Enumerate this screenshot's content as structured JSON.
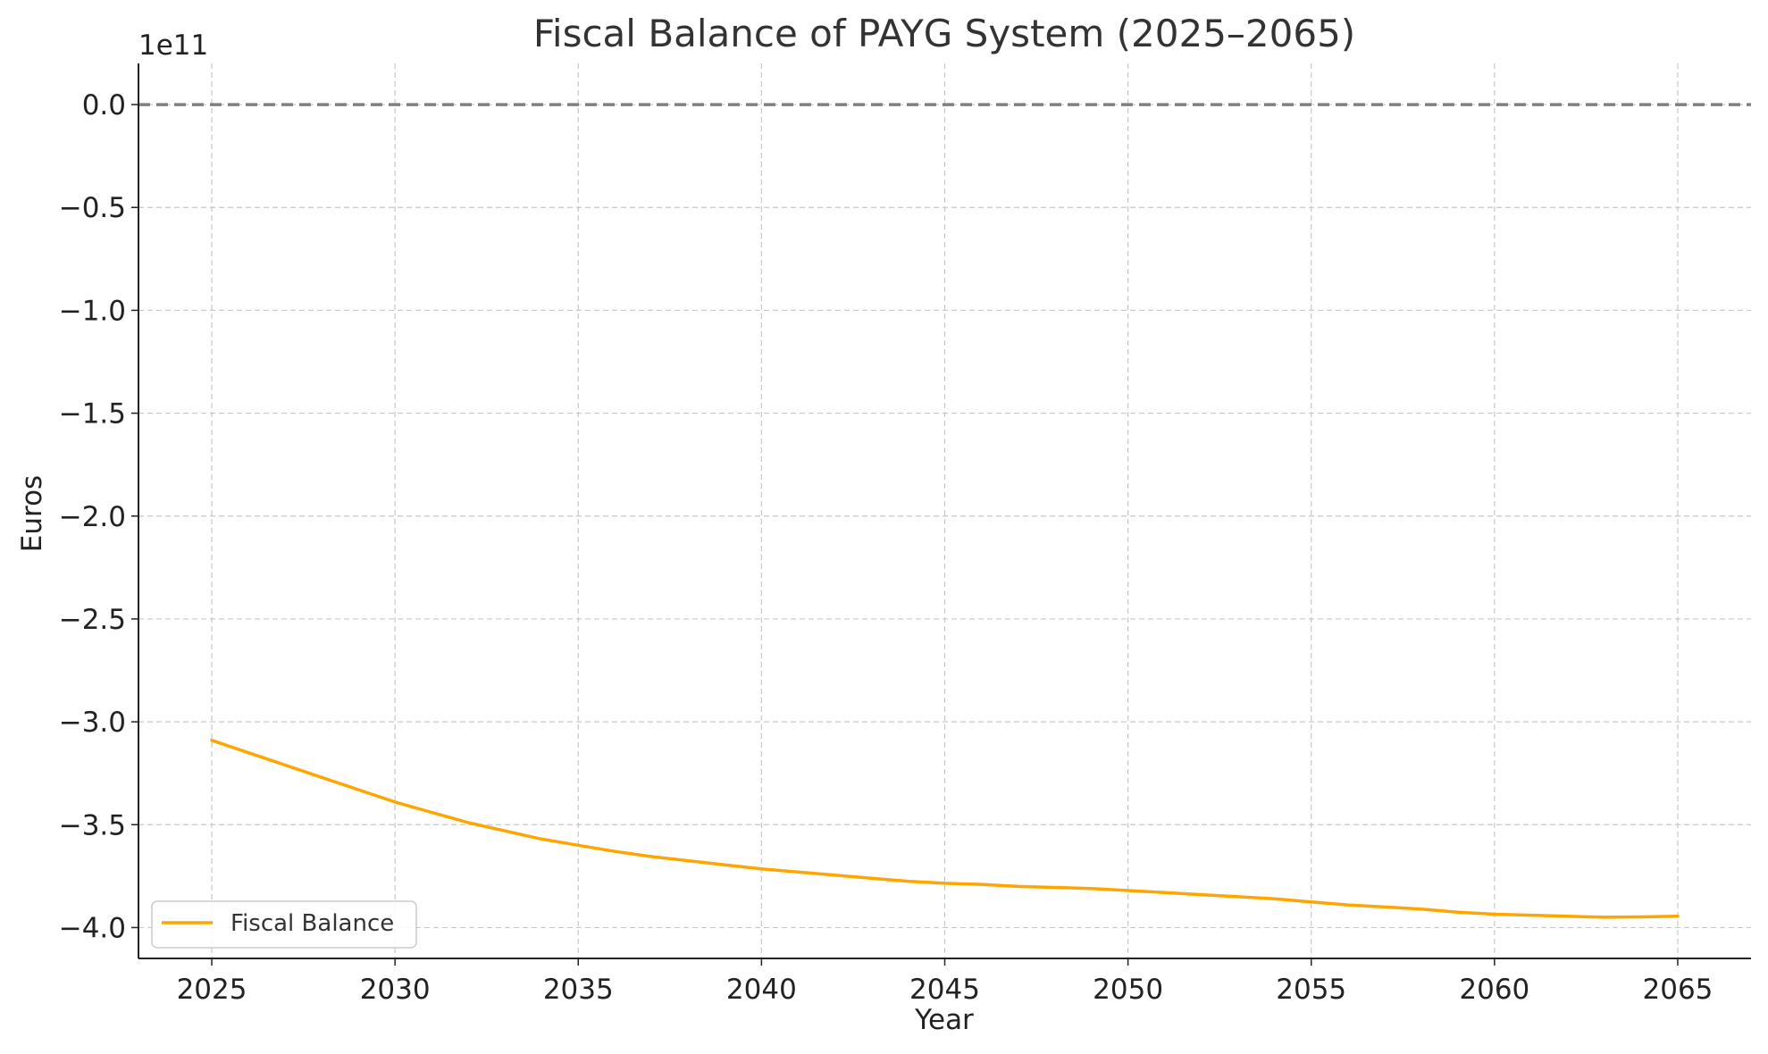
{
  "chart_data": {
    "type": "line",
    "title": "Fiscal Balance of PAYG System (2025–2065)",
    "xlabel": "Year",
    "ylabel": "Euros",
    "y_offset_label": "1e11",
    "xlim": [
      2023,
      2067
    ],
    "ylim": [
      -4.15,
      0.2
    ],
    "x_ticks": [
      2025,
      2030,
      2035,
      2040,
      2045,
      2050,
      2055,
      2060,
      2065
    ],
    "x_tick_labels": [
      "2025",
      "2030",
      "2035",
      "2040",
      "2045",
      "2050",
      "2055",
      "2060",
      "2065"
    ],
    "y_ticks": [
      0.0,
      -0.5,
      -1.0,
      -1.5,
      -2.0,
      -2.5,
      -3.0,
      -3.5,
      -4.0
    ],
    "y_tick_labels": [
      "0.0",
      "−0.5",
      "−1.0",
      "−1.5",
      "−2.0",
      "−2.5",
      "−3.0",
      "−3.5",
      "−4.0"
    ],
    "grid": true,
    "legend_position": "lower-left",
    "reference_line": {
      "y": 0.0,
      "style": "dashed",
      "color": "#808080"
    },
    "series": [
      {
        "name": "Fiscal Balance",
        "color": "#FFA500",
        "x": [
          2025,
          2026,
          2027,
          2028,
          2029,
          2030,
          2031,
          2032,
          2033,
          2034,
          2035,
          2036,
          2037,
          2038,
          2039,
          2040,
          2041,
          2042,
          2043,
          2044,
          2045,
          2046,
          2047,
          2048,
          2049,
          2050,
          2051,
          2052,
          2053,
          2054,
          2055,
          2056,
          2057,
          2058,
          2059,
          2060,
          2061,
          2062,
          2063,
          2064,
          2065
        ],
        "y": [
          -3.09,
          -3.15,
          -3.21,
          -3.27,
          -3.33,
          -3.39,
          -3.44,
          -3.49,
          -3.53,
          -3.57,
          -3.6,
          -3.63,
          -3.655,
          -3.675,
          -3.695,
          -3.715,
          -3.73,
          -3.745,
          -3.76,
          -3.775,
          -3.785,
          -3.79,
          -3.8,
          -3.805,
          -3.81,
          -3.82,
          -3.83,
          -3.84,
          -3.85,
          -3.86,
          -3.875,
          -3.89,
          -3.9,
          -3.91,
          -3.925,
          -3.935,
          -3.94,
          -3.945,
          -3.95,
          -3.948,
          -3.945
        ]
      }
    ]
  }
}
